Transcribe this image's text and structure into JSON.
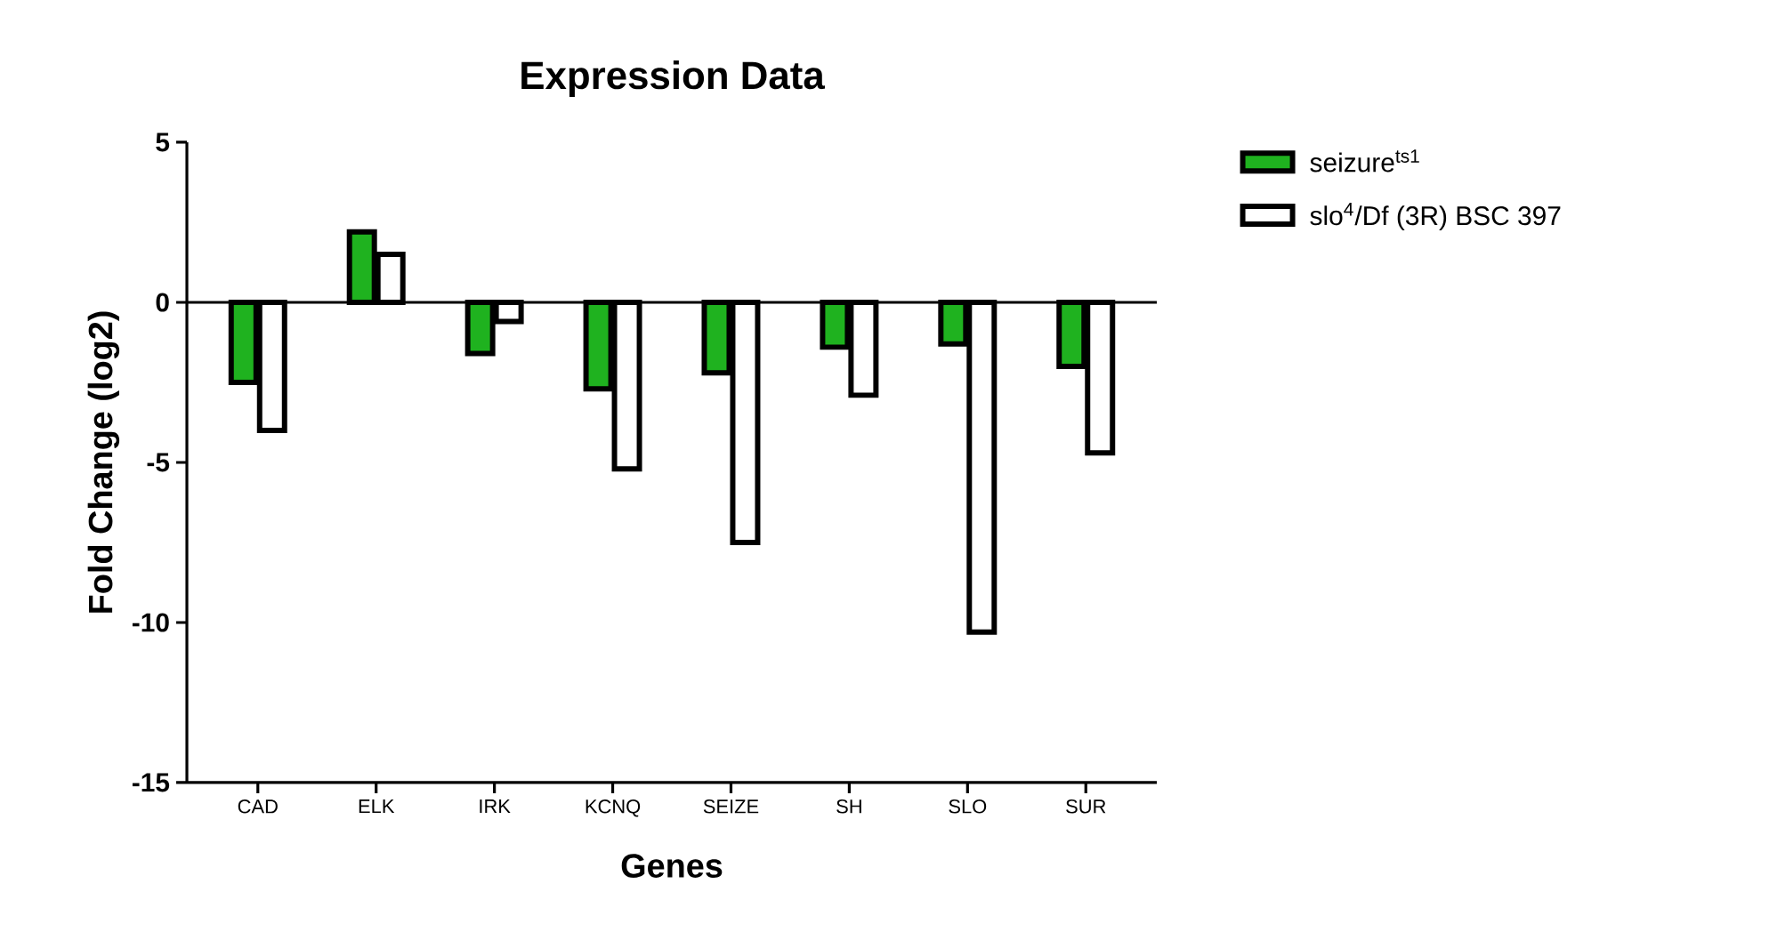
{
  "chart_data": {
    "type": "bar",
    "title": "Expression Data",
    "xlabel": "Genes",
    "ylabel": "Fold Change (log2)",
    "categories": [
      "CAD",
      "ELK",
      "IRK",
      "KCNQ",
      "SEIZE",
      "SH",
      "SLO",
      "SUR"
    ],
    "series": [
      {
        "name": "seizure$^{ts1}$",
        "color": "#1fb21f",
        "values": [
          -2.5,
          2.2,
          -1.6,
          -2.7,
          -2.2,
          -1.4,
          -1.3,
          -2.0
        ]
      },
      {
        "name": "slo$^{4}$/Df (3R) BSC 397",
        "color": "#ffffff",
        "values": [
          -4.0,
          1.5,
          -0.6,
          -5.2,
          -7.5,
          -2.9,
          -10.3,
          -4.7
        ]
      }
    ],
    "ylim": [
      -15,
      5
    ],
    "yticks": [
      -15,
      -10,
      -5,
      0,
      5
    ],
    "ref_lines": [
      {
        "axis": "y",
        "value": 0,
        "color": "#000000"
      }
    ],
    "legend": "right"
  }
}
